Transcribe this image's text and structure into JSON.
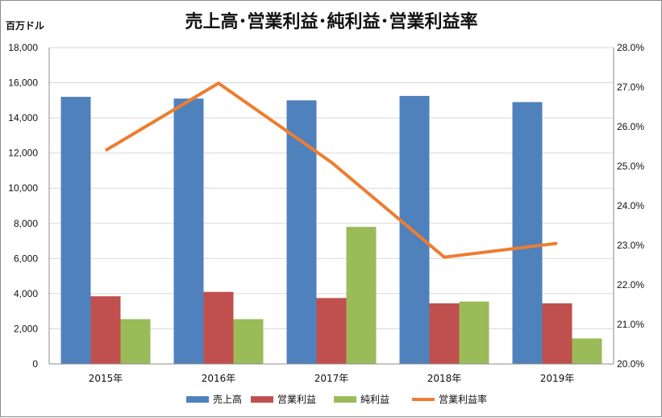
{
  "chart_data": {
    "type": "bar",
    "title": "売上高･営業利益･純利益･営業利益率",
    "ylabel": "百万ドル",
    "categories": [
      "2015年",
      "2016年",
      "2017年",
      "2018年",
      "2019年"
    ],
    "ylim": [
      0,
      18000
    ],
    "y_ticks": [
      "0",
      "2,000",
      "4,000",
      "6,000",
      "8,000",
      "10,000",
      "12,000",
      "14,000",
      "16,000",
      "18,000"
    ],
    "y2lim": [
      0.2,
      0.28
    ],
    "y2_ticks": [
      "20.0%",
      "21.0%",
      "22.0%",
      "23.0%",
      "24.0%",
      "25.0%",
      "26.0%",
      "27.0%",
      "28.0%"
    ],
    "grid": true,
    "legend_position": "bottom",
    "series": [
      {
        "name": "売上高",
        "kind": "bar",
        "color": "#4f81bd",
        "values": [
          15200,
          15100,
          15000,
          15250,
          14900
        ]
      },
      {
        "name": "営業利益",
        "kind": "bar",
        "color": "#c0504d",
        "values": [
          3850,
          4100,
          3750,
          3450,
          3450
        ]
      },
      {
        "name": "純利益",
        "kind": "bar",
        "color": "#9bbb59",
        "values": [
          2550,
          2550,
          7800,
          3550,
          1450
        ]
      },
      {
        "name": "営業利益率",
        "kind": "line",
        "axis": "right",
        "color": "#ed7d31",
        "values": [
          0.254,
          0.271,
          0.251,
          0.227,
          0.2305
        ]
      }
    ]
  }
}
